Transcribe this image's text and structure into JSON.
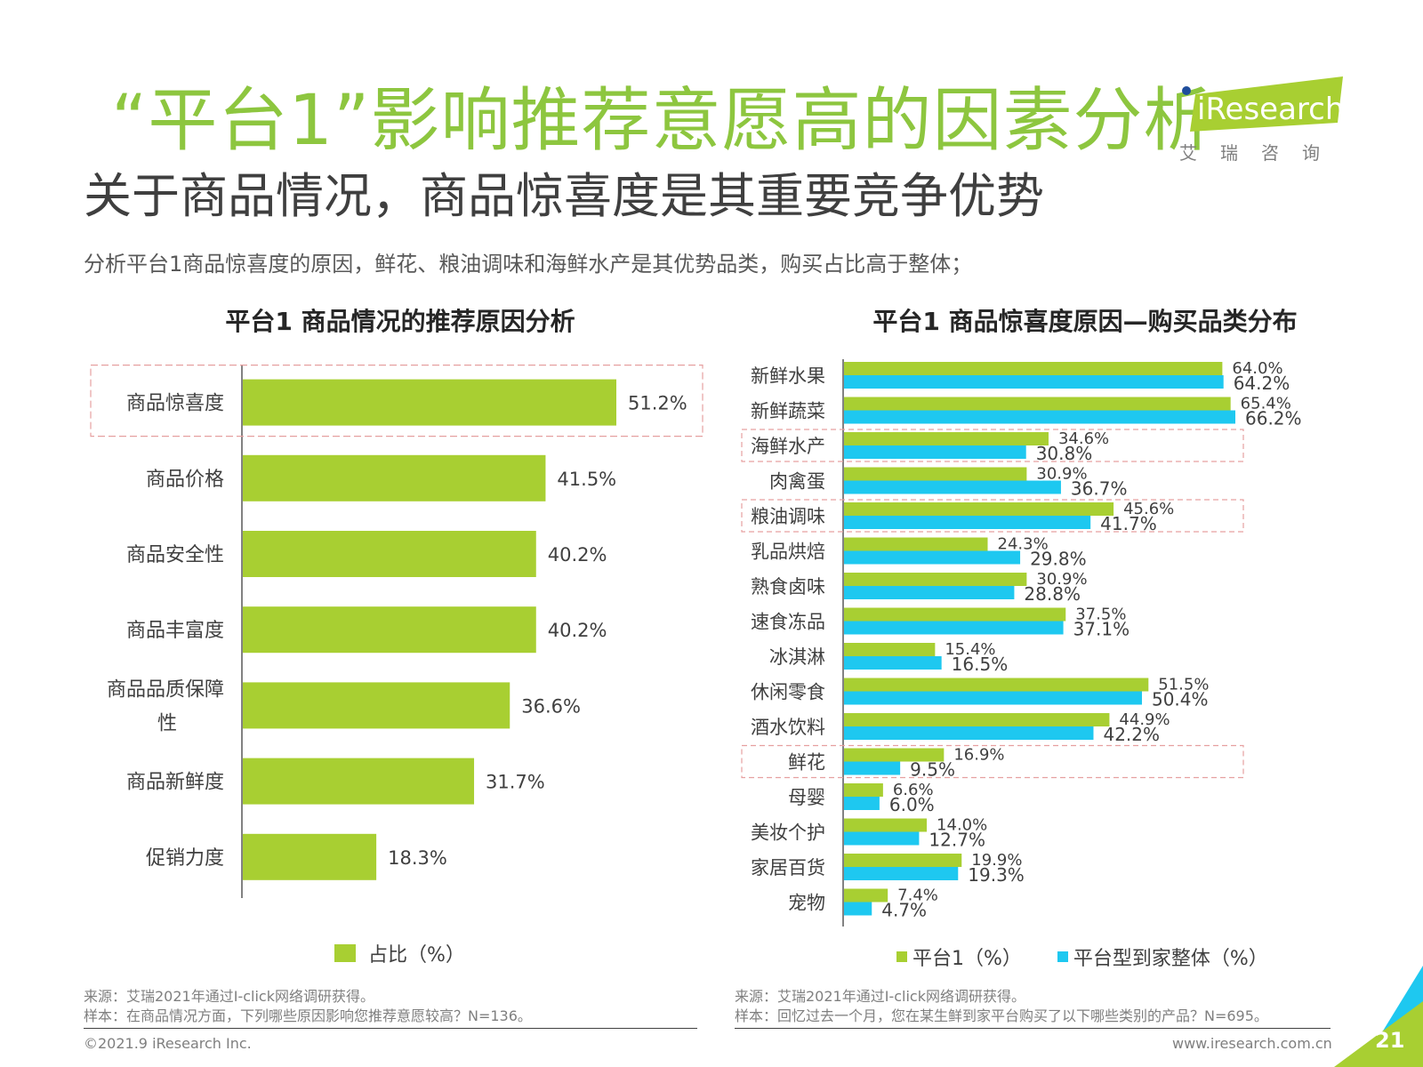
{
  "header": {
    "title": "“平台1”影响推荐意愿高的因素分析",
    "subtitle": "关于商品情况，商品惊喜度是其重要竞争优势",
    "summary": "分析平台1商品惊喜度的原因，鲜花、粮油调味和海鲜水产是其优势品类，购买占比高于整体；"
  },
  "logo": {
    "brand": "iResearch",
    "cn": "艾瑞咨询"
  },
  "colors": {
    "title_green": "#8dc63f",
    "bar_green": "#a8cf32",
    "bar_blue": "#1ec8f0",
    "highlight_box": "#e6a0a0"
  },
  "left_chart": {
    "title": "平台1 商品情况的推荐原因分析",
    "legend": "占比（%）",
    "highlighted": [
      "商品惊喜度"
    ],
    "source_line1": "来源：艾瑞2021年通过I-click网络调研获得。",
    "source_line2": "样本：在商品情况方面，下列哪些原因影响您推荐意愿较高？N=136。"
  },
  "right_chart": {
    "title": "平台1 商品惊喜度原因—购买品类分布",
    "highlighted": [
      "海鲜水产",
      "粮油调味",
      "鲜花"
    ],
    "source_line1": "来源：艾瑞2021年通过I-click网络调研获得。",
    "source_line2": "样本：回忆过去一个月，您在某生鲜到家平台购买了以下哪些类别的产品？N=695。"
  },
  "chart_data": [
    {
      "type": "bar",
      "orientation": "horizontal",
      "title": "平台1 商品情况的推荐原因分析",
      "categories": [
        "商品惊喜度",
        "商品价格",
        "商品安全性",
        "商品丰富度",
        "商品品质保障性",
        "商品新鲜度",
        "促销力度"
      ],
      "category_lines": [
        [
          "商品惊喜度"
        ],
        [
          "商品价格"
        ],
        [
          "商品安全性"
        ],
        [
          "商品丰富度"
        ],
        [
          "商品品质保障",
          "性"
        ],
        [
          "商品新鲜度"
        ],
        [
          "促销力度"
        ]
      ],
      "series": [
        {
          "name": "占比（%）",
          "values": [
            51.2,
            41.5,
            40.2,
            40.2,
            36.6,
            31.7,
            18.3
          ]
        }
      ],
      "value_labels": [
        "51.2%",
        "41.5%",
        "40.2%",
        "40.2%",
        "36.6%",
        "31.7%",
        "18.3%"
      ],
      "legend_position": "bottom",
      "grid": false
    },
    {
      "type": "bar",
      "orientation": "horizontal",
      "title": "平台1 商品惊喜度原因—购买品类分布",
      "categories": [
        "新鲜水果",
        "新鲜蔬菜",
        "海鲜水产",
        "肉禽蛋",
        "粮油调味",
        "乳品烘焙",
        "熟食卤味",
        "速食冻品",
        "冰淇淋",
        "休闲零食",
        "酒水饮料",
        "鲜花",
        "母婴",
        "美妆个护",
        "家居百货",
        "宠物"
      ],
      "series": [
        {
          "name": "平台1（%）",
          "values": [
            64.0,
            65.4,
            34.6,
            30.9,
            45.6,
            24.3,
            30.9,
            37.5,
            15.4,
            51.5,
            44.9,
            16.9,
            6.6,
            14.0,
            19.9,
            7.4
          ],
          "labels": [
            "64.0%",
            "65.4%",
            "34.6%",
            "30.9%",
            "45.6%",
            "24.3%",
            "30.9%",
            "37.5%",
            "15.4%",
            "51.5%",
            "44.9%",
            "16.9%",
            "6.6%",
            "14.0%",
            "19.9%",
            "7.4%"
          ]
        },
        {
          "name": "平台型到家整体（%）",
          "values": [
            64.2,
            66.2,
            30.8,
            36.7,
            41.7,
            29.8,
            28.8,
            37.1,
            16.5,
            50.4,
            42.2,
            9.5,
            6.0,
            12.7,
            19.3,
            4.7
          ],
          "labels": [
            "64.2%",
            "66.2%",
            "30.8%",
            "36.7%",
            "41.7%",
            "29.8%",
            "28.8%",
            "37.1%",
            "16.5%",
            "50.4%",
            "42.2%",
            "9.5%",
            "6.0%",
            "12.7%",
            "19.3%",
            "4.7%"
          ]
        }
      ],
      "legend_position": "bottom",
      "grid": false
    }
  ],
  "footer": {
    "copyright": "©2021.9 iResearch Inc.",
    "website": "www.iresearch.com.cn",
    "page": "21"
  }
}
